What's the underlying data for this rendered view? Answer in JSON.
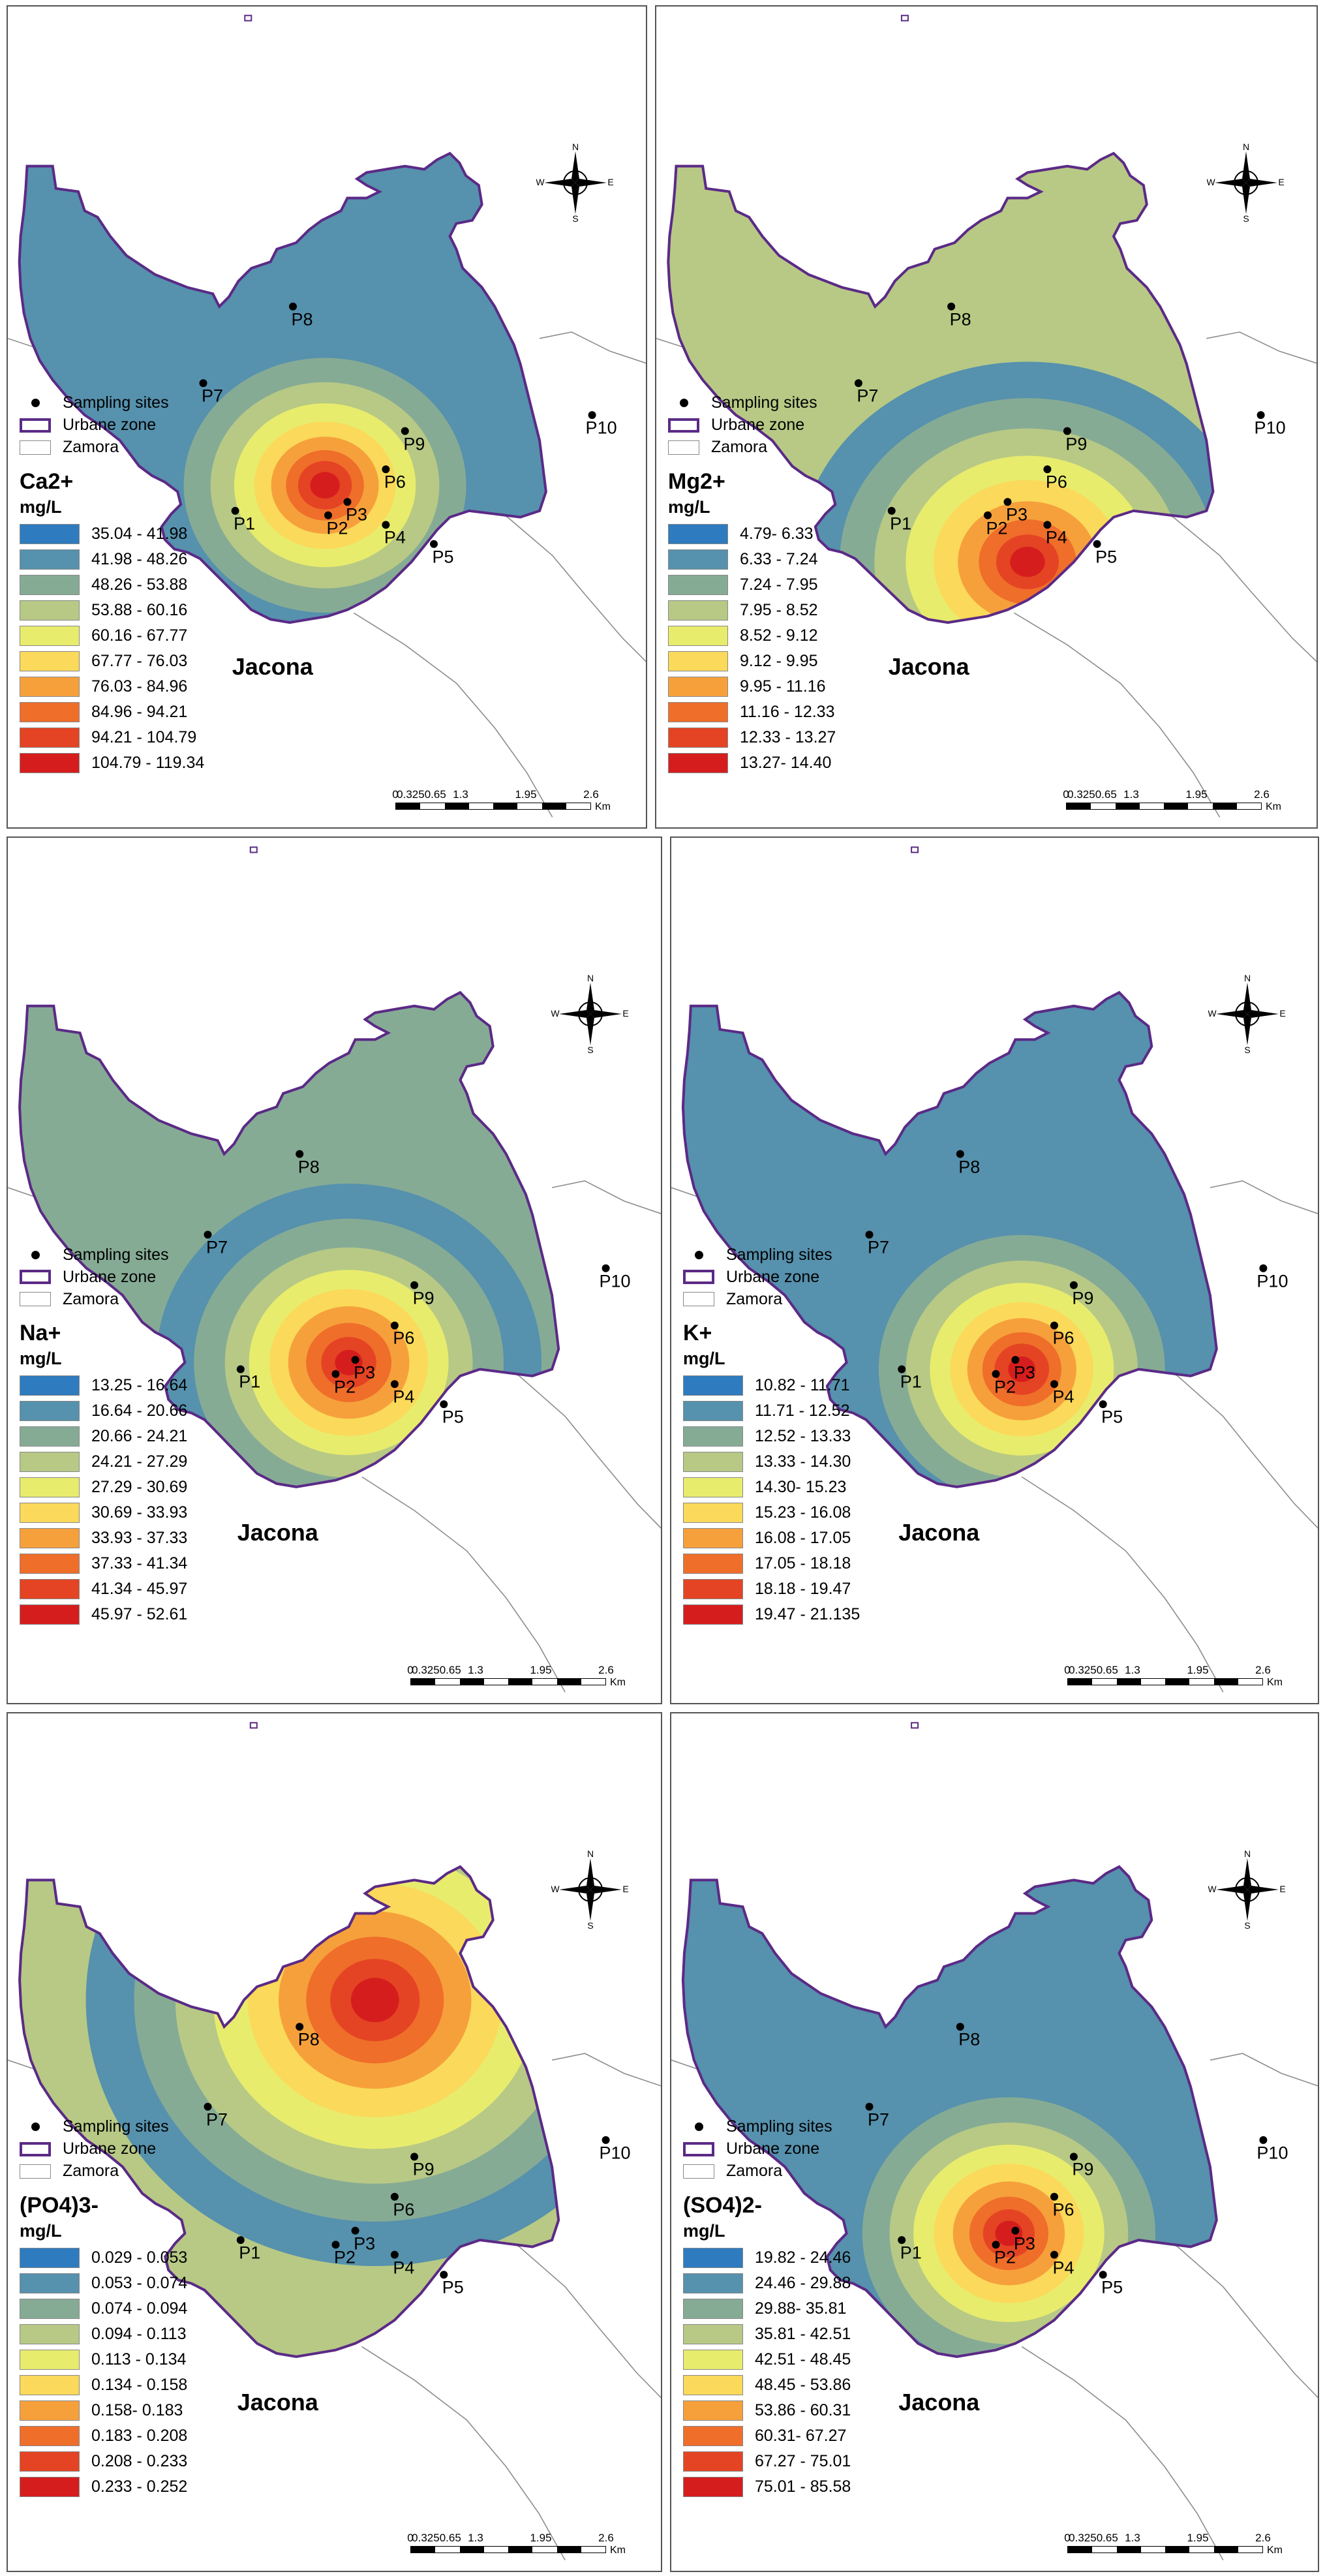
{
  "legend_common": {
    "sampling_sites": "Sampling sites",
    "urbane_zone": "Urbane zone",
    "zamora": "Zamora",
    "unit": "mg/L"
  },
  "place_label": "Jacona",
  "north_arrow": {
    "n": "N",
    "s": "S",
    "e": "E",
    "w": "W"
  },
  "scale_bar": {
    "ticks": [
      "0",
      "0.3250.65",
      "1.3",
      "1.95",
      "2.6"
    ],
    "unit": "Km"
  },
  "site_labels": [
    "P1",
    "P2",
    "P3",
    "P4",
    "P5",
    "P6",
    "P7",
    "P8",
    "P9",
    "P10"
  ],
  "colors": {
    "boundary": "#5b2a86",
    "roads": "#8c8c8c",
    "ramp": [
      "#2e7bbf",
      "#5691ad",
      "#86ab95",
      "#b7c985",
      "#e8ec6d",
      "#fbd95a",
      "#f6a03c",
      "#ef6e2a",
      "#e44423",
      "#d61d1d"
    ]
  },
  "panels": [
    {
      "variable": "Ca2+",
      "classes": [
        "35.04 - 41.98",
        "41.98 - 48.26",
        "48.26 - 53.88",
        "53.88 - 60.16",
        "60.16 - 67.77",
        "67.77 - 76.03",
        "76.03 - 84.96",
        "84.96 - 94.21",
        "94.21 - 104.79",
        "104.79 - 119.34"
      ]
    },
    {
      "variable": "Mg2+",
      "classes": [
        "4.79- 6.33",
        "6.33 - 7.24",
        "7.24 - 7.95",
        "7.95 - 8.52",
        "8.52 - 9.12",
        "9.12 - 9.95",
        "9.95 - 11.16",
        "11.16 - 12.33",
        "12.33 - 13.27",
        "13.27- 14.40"
      ]
    },
    {
      "variable": "Na+",
      "classes": [
        "13.25 - 16.64",
        "16.64 - 20.66",
        "20.66 - 24.21",
        "24.21 - 27.29",
        "27.29 - 30.69",
        "30.69 - 33.93",
        "33.93 - 37.33",
        "37.33 - 41.34",
        "41.34 - 45.97",
        "45.97 - 52.61"
      ]
    },
    {
      "variable": "K+",
      "classes": [
        "10.82 - 11.71",
        "11.71 - 12.52",
        "12.52 - 13.33",
        "13.33 - 14.30",
        "14.30- 15.23",
        "15.23 - 16.08",
        "16.08 - 17.05",
        "17.05 - 18.18",
        "18.18 - 19.47",
        "19.47 - 21.135"
      ]
    },
    {
      "variable": "(PO4)3-",
      "classes": [
        "0.029 - 0.053",
        "0.053 - 0.074",
        "0.074 - 0.094",
        "0.094 - 0.113",
        "0.113 - 0.134",
        "0.134 - 0.158",
        "0.158- 0.183",
        "0.183 - 0.208",
        "0.208 - 0.233",
        "0.233 - 0.252"
      ]
    },
    {
      "variable": "(SO4)2-",
      "classes": [
        "19.82 - 24.46",
        "24.46 - 29.88",
        "29.88- 35.81",
        "35.81 - 42.51",
        "42.51 - 48.45",
        "48.45 - 53.86",
        "53.86 - 60.31",
        "60.31- 67.27",
        "67.27 - 75.01",
        "75.01 - 85.58"
      ]
    }
  ]
}
